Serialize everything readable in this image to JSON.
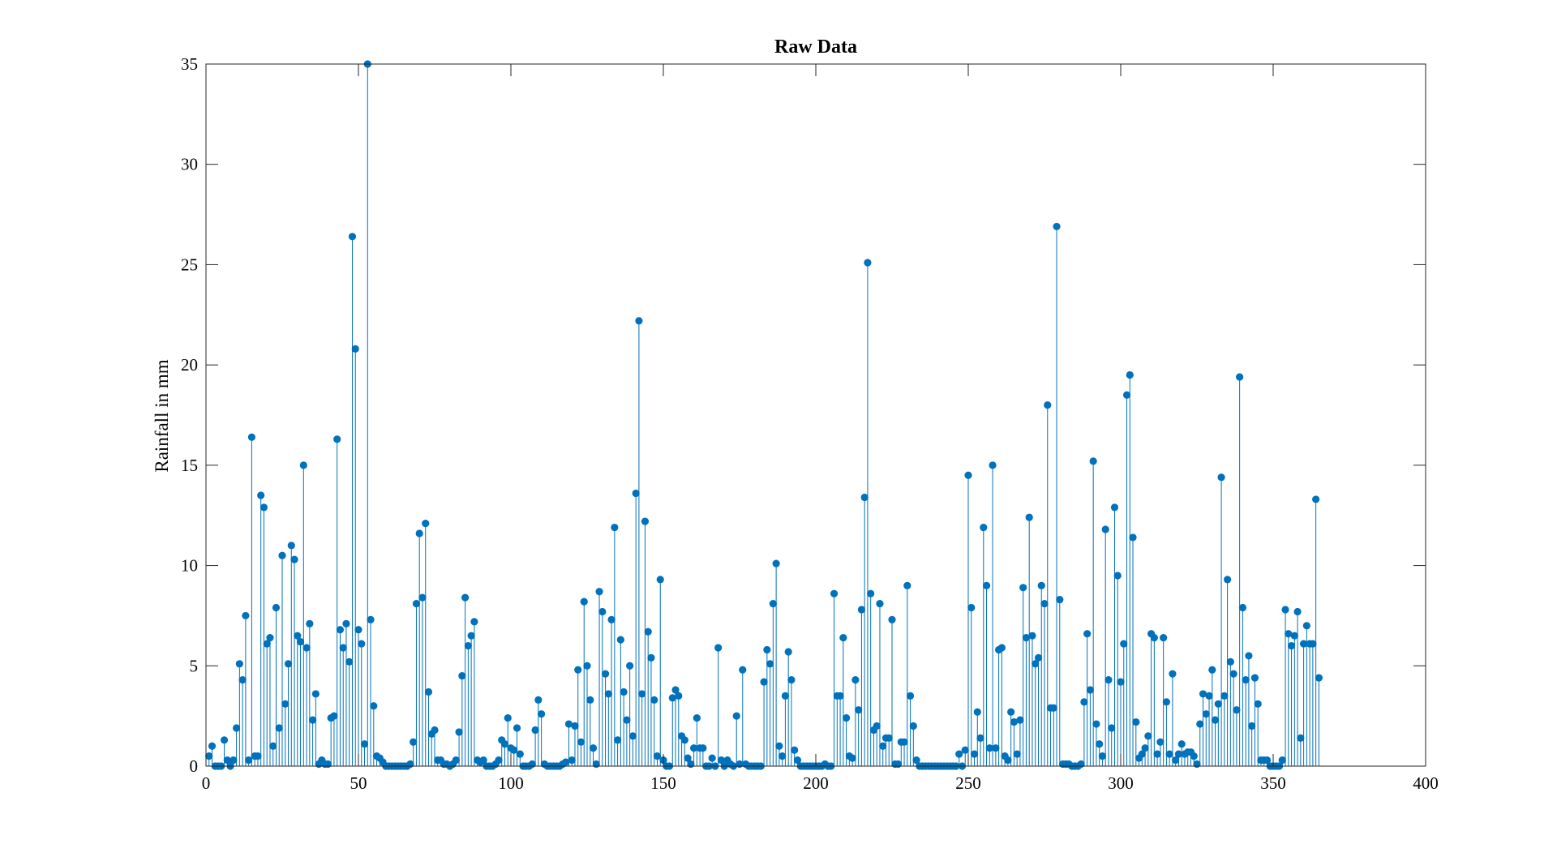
{
  "chart_data": {
    "type": "stem",
    "title": "Raw Data",
    "xlabel": "",
    "ylabel": "Rainfall in mm",
    "xlim": [
      0,
      400
    ],
    "ylim": [
      0,
      35
    ],
    "xticks": [
      0,
      50,
      100,
      150,
      200,
      250,
      300,
      350,
      400
    ],
    "yticks": [
      0,
      5,
      10,
      15,
      20,
      25,
      30,
      35
    ],
    "grid": false,
    "color": "#0072BD",
    "x_start": 1,
    "values": [
      0.5,
      1.0,
      0.0,
      0.0,
      0.0,
      1.3,
      0.3,
      0.0,
      0.3,
      1.9,
      5.1,
      4.3,
      7.5,
      0.3,
      16.4,
      0.5,
      0.5,
      13.5,
      12.9,
      6.1,
      6.4,
      1.0,
      7.9,
      1.9,
      10.5,
      3.1,
      5.1,
      11.0,
      10.3,
      6.5,
      6.2,
      15.0,
      5.9,
      7.1,
      2.3,
      3.6,
      0.1,
      0.3,
      0.1,
      0.1,
      2.4,
      2.5,
      16.3,
      6.8,
      5.9,
      7.1,
      5.2,
      26.4,
      20.8,
      6.8,
      6.1,
      1.1,
      35.0,
      7.3,
      3.0,
      0.5,
      0.4,
      0.2,
      0.0,
      0.0,
      0.0,
      0.0,
      0.0,
      0.0,
      0.0,
      0.0,
      0.1,
      1.2,
      8.1,
      11.6,
      8.4,
      12.1,
      3.7,
      1.6,
      1.8,
      0.3,
      0.3,
      0.1,
      0.1,
      0.0,
      0.1,
      0.3,
      1.7,
      4.5,
      8.4,
      6.0,
      6.5,
      7.2,
      0.3,
      0.2,
      0.3,
      0.0,
      0.0,
      0.0,
      0.1,
      0.3,
      1.3,
      1.1,
      2.4,
      0.9,
      0.8,
      1.9,
      0.6,
      0.0,
      0.0,
      0.0,
      0.1,
      1.8,
      3.3,
      2.6,
      0.1,
      0.0,
      0.0,
      0.0,
      0.0,
      0.0,
      0.1,
      0.2,
      2.1,
      0.3,
      2.0,
      4.8,
      1.2,
      8.2,
      5.0,
      3.3,
      0.9,
      0.1,
      8.7,
      7.7,
      4.6,
      3.6,
      7.3,
      11.9,
      1.3,
      6.3,
      3.7,
      2.3,
      5.0,
      1.5,
      13.6,
      22.2,
      3.6,
      12.2,
      6.7,
      5.4,
      3.3,
      0.5,
      9.3,
      0.3,
      0.0,
      0.0,
      3.4,
      3.8,
      3.5,
      1.5,
      1.3,
      0.4,
      0.1,
      0.9,
      2.4,
      0.9,
      0.9,
      0.0,
      0.0,
      0.4,
      0.0,
      5.9,
      0.3,
      0.0,
      0.3,
      0.1,
      0.0,
      2.5,
      0.1,
      4.8,
      0.1,
      0.0,
      0.0,
      0.0,
      0.0,
      0.0,
      4.2,
      5.8,
      5.1,
      8.1,
      10.1,
      1.0,
      0.5,
      3.5,
      5.7,
      4.3,
      0.8,
      0.3,
      0.0,
      0.0,
      0.0,
      0.0,
      0.0,
      0.0,
      0.0,
      0.0,
      0.1,
      0.0,
      0.0,
      8.6,
      3.5,
      3.5,
      6.4,
      2.4,
      0.5,
      0.4,
      4.3,
      2.8,
      7.8,
      13.4,
      25.1,
      8.6,
      1.8,
      2.0,
      8.1,
      1.0,
      1.4,
      1.4,
      7.3,
      0.1,
      0.1,
      1.2,
      1.2,
      9.0,
      3.5,
      2.0,
      0.3,
      0.0,
      0.0,
      0.0,
      0.0,
      0.0,
      0.0,
      0.0,
      0.0,
      0.0,
      0.0,
      0.0,
      0.0,
      0.0,
      0.6,
      0.0,
      0.8,
      14.5,
      7.9,
      0.6,
      2.7,
      1.4,
      11.9,
      9.0,
      0.9,
      15.0,
      0.9,
      5.8,
      5.9,
      0.5,
      0.3,
      2.7,
      2.2,
      0.6,
      2.3,
      8.9,
      6.4,
      12.4,
      6.5,
      5.1,
      5.4,
      9.0,
      8.1,
      18.0,
      2.9,
      2.9,
      26.9,
      8.3,
      0.1,
      0.1,
      0.1,
      0.0,
      0.0,
      0.0,
      0.1,
      3.2,
      6.6,
      3.8,
      15.2,
      2.1,
      1.1,
      0.5,
      11.8,
      4.3,
      1.9,
      12.9,
      9.5,
      4.2,
      6.1,
      18.5,
      19.5,
      11.4,
      2.2,
      0.4,
      0.6,
      0.9,
      1.5,
      6.6,
      6.4,
      0.6,
      1.2,
      6.4,
      3.2,
      0.6,
      4.6,
      0.3,
      0.6,
      1.1,
      0.6,
      0.7,
      0.7,
      0.5,
      0.1,
      2.1,
      3.6,
      2.6,
      3.5,
      4.8,
      2.3,
      3.1,
      14.4,
      3.5,
      9.3,
      5.2,
      4.6,
      2.8,
      19.4,
      7.9,
      4.3,
      5.5,
      2.0,
      4.4,
      3.1,
      0.3,
      0.3,
      0.3,
      0.0,
      0.0,
      0.0,
      0.0,
      0.3,
      7.8,
      6.6,
      6.0,
      6.5,
      7.7,
      1.4,
      6.1,
      7.0,
      6.1,
      6.1,
      13.3,
      4.4
    ]
  }
}
